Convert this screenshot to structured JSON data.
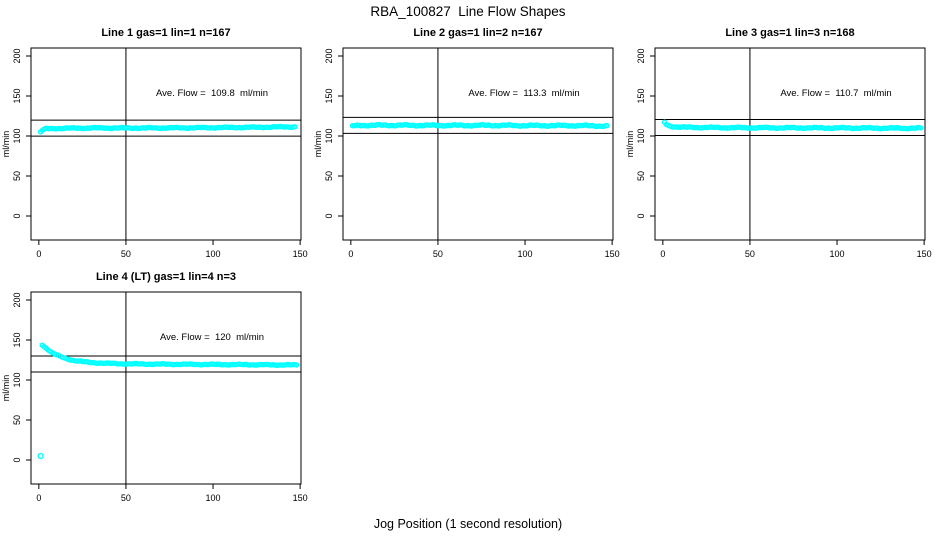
{
  "figure": {
    "title": "RBA_100827  Line Flow Shapes",
    "xlabel": "Jog Position (1 second resolution)",
    "background_color": "#FFFFFF",
    "frame_color": "#000000"
  },
  "chart_data": [
    {
      "type": "scatter",
      "title": "Line 1 gas=1 lin=1 n=167",
      "annotation": "Ave. Flow =  109.8  ml/min",
      "ave_flow": 109.8,
      "n": 167,
      "ylabel": "ml/min",
      "xticks": [
        0,
        50,
        100,
        150
      ],
      "yticks": [
        0,
        50,
        100,
        150,
        200
      ],
      "xlim": [
        -4.5,
        150.5
      ],
      "ylim": [
        -30,
        210
      ],
      "vline_x": 50,
      "hlines": [
        119.8,
        99.8
      ],
      "point_color": "#00FFFF",
      "line_color": "#000000",
      "x_start": 1,
      "x_end": 147,
      "noise": 0.7,
      "anchors": [
        [
          1,
          105
        ],
        [
          2,
          107
        ],
        [
          4,
          109
        ],
        [
          10,
          109.5
        ],
        [
          30,
          110
        ],
        [
          60,
          110
        ],
        [
          90,
          110.3
        ],
        [
          120,
          110.8
        ],
        [
          135,
          111.2
        ],
        [
          147,
          111.5
        ]
      ],
      "outliers": []
    },
    {
      "type": "scatter",
      "title": "Line 2 gas=1 lin=2 n=167",
      "annotation": "Ave. Flow =  113.3  ml/min",
      "ave_flow": 113.3,
      "n": 167,
      "ylabel": "ml/min",
      "xticks": [
        0,
        50,
        100,
        150
      ],
      "yticks": [
        0,
        50,
        100,
        150,
        200
      ],
      "xlim": [
        -4.5,
        150.5
      ],
      "ylim": [
        -30,
        210
      ],
      "vline_x": 50,
      "hlines": [
        123.3,
        103.3
      ],
      "point_color": "#00FFFF",
      "line_color": "#000000",
      "x_start": 1,
      "x_end": 147,
      "noise": 0.9,
      "anchors": [
        [
          1,
          112.5
        ],
        [
          5,
          113.3
        ],
        [
          20,
          113.5
        ],
        [
          50,
          113.2
        ],
        [
          80,
          113.3
        ],
        [
          110,
          113
        ],
        [
          130,
          113
        ],
        [
          147,
          112.5
        ]
      ],
      "outliers": []
    },
    {
      "type": "scatter",
      "title": "Line 3 gas=1 lin=3 n=168",
      "annotation": "Ave. Flow =  110.7  ml/min",
      "ave_flow": 110.7,
      "n": 168,
      "ylabel": "ml/min",
      "xticks": [
        0,
        50,
        100,
        150
      ],
      "yticks": [
        0,
        50,
        100,
        150,
        200
      ],
      "xlim": [
        -4.5,
        150.5
      ],
      "ylim": [
        -30,
        210
      ],
      "vline_x": 50,
      "hlines": [
        120.7,
        100.7
      ],
      "point_color": "#00FFFF",
      "line_color": "#000000",
      "x_start": 1,
      "x_end": 148,
      "noise": 0.8,
      "anchors": [
        [
          1,
          117
        ],
        [
          2,
          114.5
        ],
        [
          4,
          112.5
        ],
        [
          8,
          111.3
        ],
        [
          15,
          110.8
        ],
        [
          40,
          110.4
        ],
        [
          80,
          110.2
        ],
        [
          110,
          110
        ],
        [
          130,
          109.8
        ],
        [
          148,
          109.8
        ]
      ],
      "outliers": []
    },
    {
      "type": "scatter",
      "title": "Line 4 (LT) gas=1 lin=4 n=3",
      "annotation": "Ave. Flow =  120  ml/min",
      "ave_flow": 120,
      "n": 3,
      "ylabel": "ml/min",
      "xticks": [
        0,
        50,
        100,
        150
      ],
      "yticks": [
        0,
        50,
        100,
        150,
        200
      ],
      "xlim": [
        -4.5,
        150.5
      ],
      "ylim": [
        -30,
        210
      ],
      "vline_x": 50,
      "hlines": [
        130,
        110
      ],
      "point_color": "#00FFFF",
      "line_color": "#000000",
      "x_start": 2,
      "x_end": 148,
      "noise": 0.6,
      "anchors": [
        [
          2,
          144
        ],
        [
          3,
          142
        ],
        [
          5,
          138.5
        ],
        [
          8,
          133.5
        ],
        [
          12,
          129.5
        ],
        [
          16,
          126.5
        ],
        [
          20,
          124.5
        ],
        [
          25,
          123
        ],
        [
          30,
          121.8
        ],
        [
          40,
          120.8
        ],
        [
          50,
          120.2
        ],
        [
          70,
          119.8
        ],
        [
          90,
          119.5
        ],
        [
          110,
          119.3
        ],
        [
          130,
          119
        ],
        [
          148,
          118.8
        ]
      ],
      "outliers": [
        [
          1,
          5
        ]
      ]
    }
  ]
}
